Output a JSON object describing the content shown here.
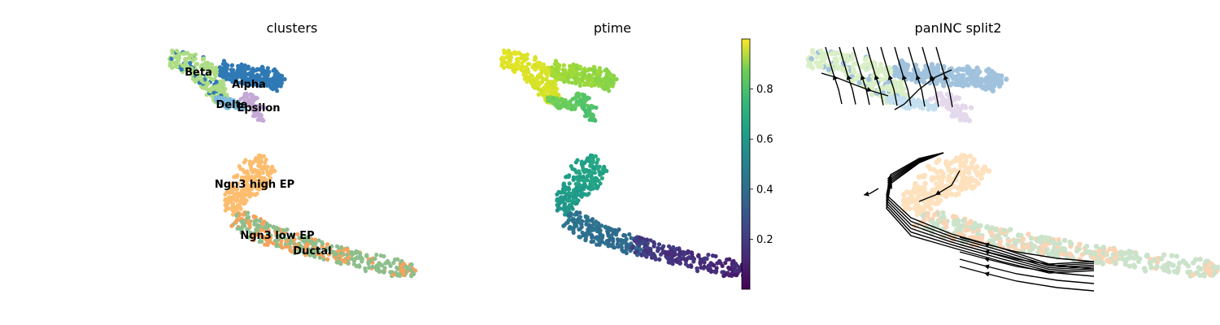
{
  "chart_data": [
    {
      "type": "scatter",
      "title": "clusters",
      "legend": "on data",
      "categories": [
        "Beta",
        "Alpha",
        "Delta",
        "Epsilon",
        "Ngn3 high EP",
        "Ngn3 low EP",
        "Ductal"
      ],
      "colors": {
        "Beta": "#aedc84",
        "Alpha": "#2f79b5",
        "Delta": "#7dbbe0",
        "Epsilon": "#c4a9d6",
        "Ngn3 high EP": "#fdbd6f",
        "Ngn3 low EP": "#f6a25b",
        "Ductal": "#8dbf8d"
      }
    },
    {
      "type": "scatter",
      "title": "ptime",
      "colormap": "viridis",
      "colorbar": {
        "range": [
          0,
          1
        ],
        "ticks": [
          "0.2",
          "0.4",
          "0.6",
          "0.8"
        ]
      }
    },
    {
      "type": "scatter",
      "title": "panINC split2",
      "overlay": "velocity streamlines",
      "streamline_color": "#000000"
    }
  ]
}
